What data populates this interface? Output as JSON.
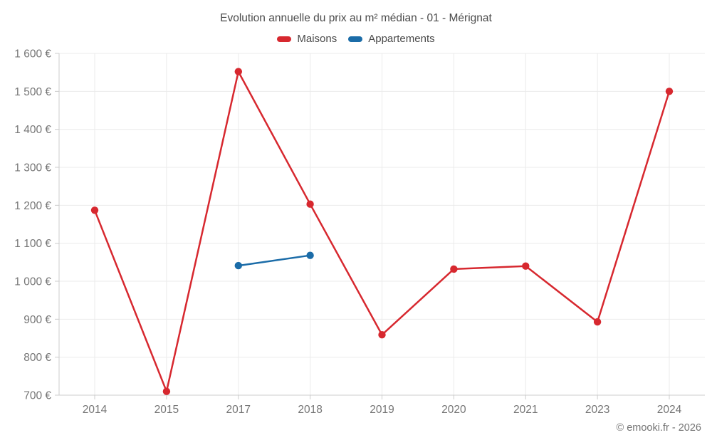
{
  "header": {
    "title": "Evolution annuelle du prix au m² médian - 01 - Mérignat"
  },
  "legend": {
    "items": [
      {
        "label": "Maisons",
        "color": "#d7282f"
      },
      {
        "label": "Appartements",
        "color": "#1b6ca8"
      }
    ]
  },
  "footer": {
    "credit": "© emooki.fr - 2026"
  },
  "chart_data": {
    "type": "line",
    "title": "Evolution annuelle du prix au m² médian - 01 - Mérignat",
    "categories": [
      "2014",
      "2015",
      "2017",
      "2018",
      "2019",
      "2020",
      "2021",
      "2023",
      "2024"
    ],
    "series": [
      {
        "name": "Maisons",
        "color": "#d7282f",
        "values": [
          1187,
          710,
          1552,
          1203,
          859,
          1032,
          1040,
          893,
          1500
        ]
      },
      {
        "name": "Appartements",
        "color": "#1b6ca8",
        "values": [
          null,
          null,
          1041,
          1068,
          null,
          null,
          null,
          null,
          null
        ]
      }
    ],
    "ylim": [
      700,
      1600
    ],
    "ytick_step": 100,
    "yticks": [
      700,
      800,
      900,
      1000,
      1100,
      1200,
      1300,
      1400,
      1500,
      1600
    ],
    "ytick_labels": [
      "700 €",
      "800 €",
      "900 €",
      "1 000 €",
      "1 100 €",
      "1 200 €",
      "1 300 €",
      "1 400 €",
      "1 500 €",
      "1 600 €"
    ],
    "currency": "€",
    "grid": true,
    "legend_position": "top"
  },
  "colors": {
    "grid": "#ebebeb",
    "axis": "#cccccc",
    "tick_text": "#757575",
    "title_text": "#4a4a4a",
    "background": "#ffffff"
  }
}
